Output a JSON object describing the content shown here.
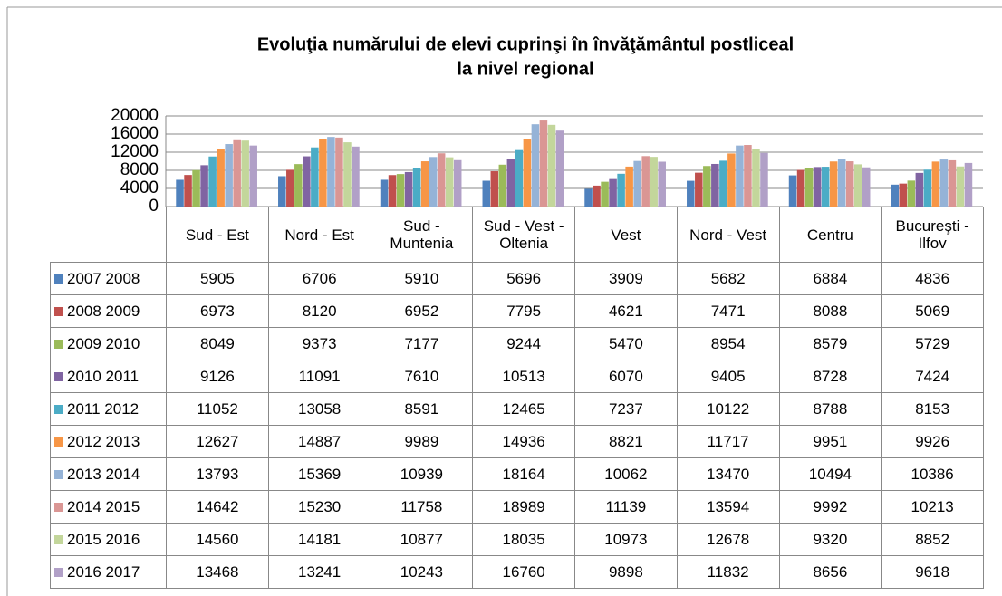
{
  "chart_data": {
    "type": "bar",
    "title": [
      "Evoluţia numărului de elevi cuprinşi în învăţământul postliceal",
      "la nivel regional"
    ],
    "categories": [
      "Sud - Est",
      "Nord - Est",
      "Sud - Muntenia",
      "Sud - Vest - Oltenia",
      "Vest",
      "Nord - Vest",
      "Centru",
      "Bucureşti - Ilfov"
    ],
    "series": [
      {
        "name": "2007 2008",
        "color": "#4F81BD",
        "values": [
          5905,
          6706,
          5910,
          5696,
          3909,
          5682,
          6884,
          4836
        ]
      },
      {
        "name": "2008 2009",
        "color": "#C0504D",
        "values": [
          6973,
          8120,
          6952,
          7795,
          4621,
          7471,
          8088,
          5069
        ]
      },
      {
        "name": "2009 2010",
        "color": "#9BBB59",
        "values": [
          8049,
          9373,
          7177,
          9244,
          5470,
          8954,
          8579,
          5729
        ]
      },
      {
        "name": "2010 2011",
        "color": "#8064A2",
        "values": [
          9126,
          11091,
          7610,
          10513,
          6070,
          9405,
          8728,
          7424
        ]
      },
      {
        "name": "2011 2012",
        "color": "#4BACC6",
        "values": [
          11052,
          13058,
          8591,
          12465,
          7237,
          10122,
          8788,
          8153
        ]
      },
      {
        "name": "2012 2013",
        "color": "#F79646",
        "values": [
          12627,
          14887,
          9989,
          14936,
          8821,
          11717,
          9951,
          9926
        ]
      },
      {
        "name": "2013 2014",
        "color": "#95B3D7",
        "values": [
          13793,
          15369,
          10939,
          18164,
          10062,
          13470,
          10494,
          10386
        ]
      },
      {
        "name": "2014 2015",
        "color": "#DA9694",
        "values": [
          14642,
          15230,
          11758,
          18989,
          11139,
          13594,
          9992,
          10213
        ]
      },
      {
        "name": "2015 2016",
        "color": "#C3D69B",
        "values": [
          14560,
          14181,
          10877,
          18035,
          10973,
          12678,
          9320,
          8852
        ]
      },
      {
        "name": "2016 2017",
        "color": "#B1A0C7",
        "values": [
          13468,
          13241,
          10243,
          16760,
          9898,
          11832,
          8656,
          9618
        ]
      }
    ],
    "ylim": [
      0,
      20000
    ],
    "yticks": [
      0,
      4000,
      8000,
      12000,
      16000,
      20000
    ],
    "grid": true
  }
}
